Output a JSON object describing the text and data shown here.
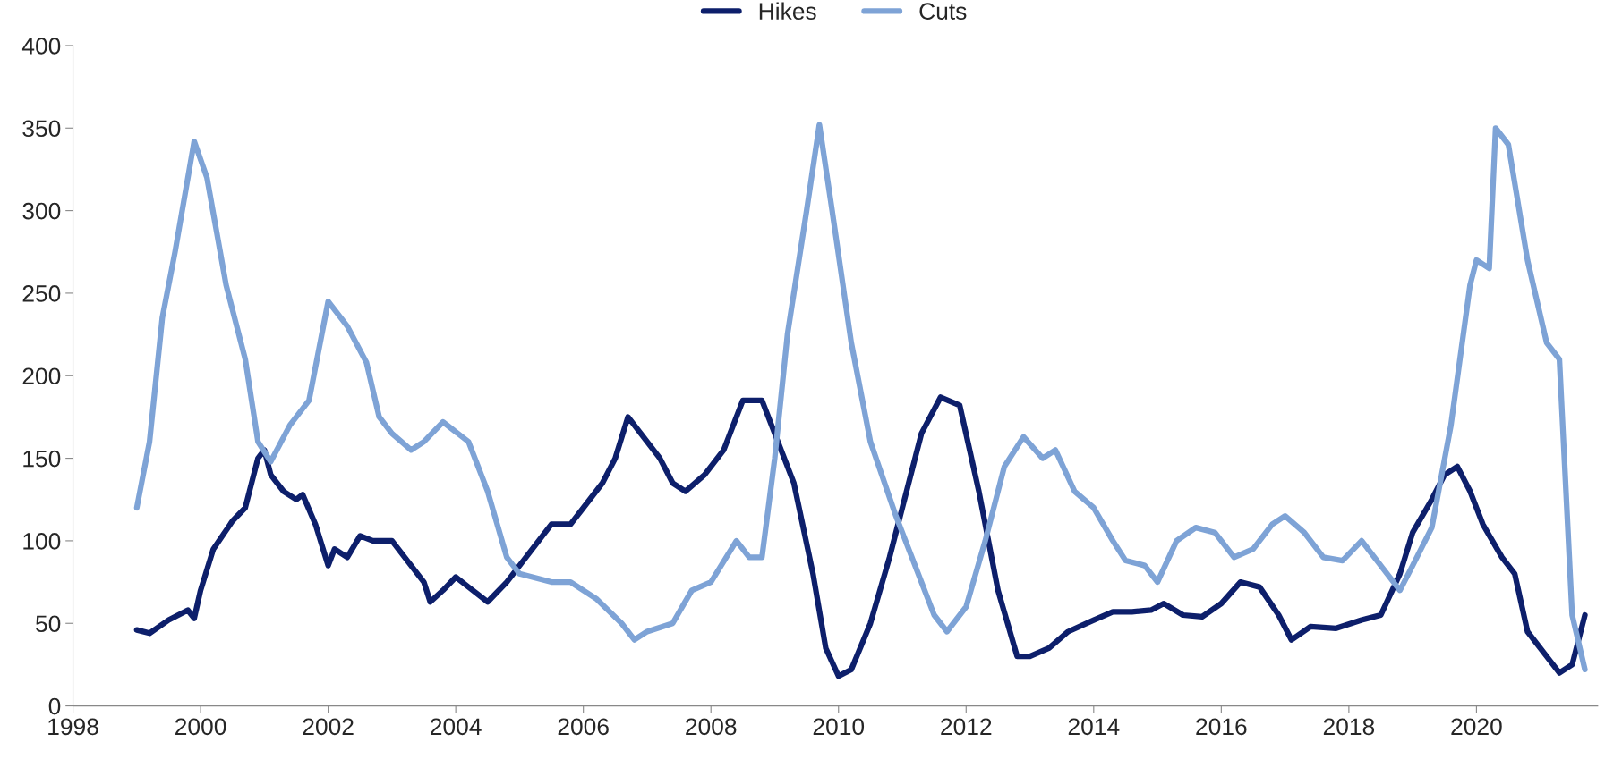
{
  "chart_data": {
    "type": "line",
    "xlim": [
      1998,
      2021.9
    ],
    "xticks": [
      1998,
      2000,
      2002,
      2004,
      2006,
      2008,
      2010,
      2012,
      2014,
      2016,
      2018,
      2020
    ],
    "ylim": [
      0,
      400
    ],
    "yticks": [
      0,
      50,
      100,
      150,
      200,
      250,
      300,
      350,
      400
    ],
    "grid": false,
    "legend": "top",
    "line_style": "solid",
    "marker": "none",
    "series": [
      {
        "name": "Hikes",
        "color": "#0d1f6b",
        "x": [
          1999.0,
          1999.2,
          1999.5,
          1999.8,
          1999.9,
          2000.0,
          2000.2,
          2000.5,
          2000.7,
          2000.9,
          2001.0,
          2001.1,
          2001.3,
          2001.5,
          2001.6,
          2001.8,
          2002.0,
          2002.1,
          2002.3,
          2002.5,
          2002.7,
          2003.0,
          2003.2,
          2003.5,
          2003.6,
          2003.8,
          2004.0,
          2004.2,
          2004.5,
          2004.8,
          2005.0,
          2005.3,
          2005.5,
          2005.8,
          2006.0,
          2006.3,
          2006.5,
          2006.7,
          2007.0,
          2007.2,
          2007.4,
          2007.6,
          2007.9,
          2008.2,
          2008.5,
          2008.8,
          2009.0,
          2009.3,
          2009.6,
          2009.8,
          2010.0,
          2010.2,
          2010.5,
          2010.8,
          2011.0,
          2011.3,
          2011.6,
          2011.9,
          2012.2,
          2012.5,
          2012.8,
          2013.0,
          2013.3,
          2013.6,
          2014.0,
          2014.3,
          2014.6,
          2014.9,
          2015.1,
          2015.4,
          2015.7,
          2016.0,
          2016.3,
          2016.6,
          2016.9,
          2017.1,
          2017.4,
          2017.8,
          2018.2,
          2018.5,
          2018.8,
          2019.0,
          2019.3,
          2019.5,
          2019.7,
          2019.9,
          2020.1,
          2020.4,
          2020.6,
          2020.8,
          2021.1,
          2021.3,
          2021.5,
          2021.7
        ],
        "values": [
          46,
          44,
          52,
          58,
          53,
          70,
          95,
          112,
          120,
          150,
          155,
          140,
          130,
          125,
          128,
          110,
          85,
          95,
          90,
          103,
          100,
          100,
          90,
          75,
          63,
          70,
          78,
          72,
          63,
          75,
          85,
          100,
          110,
          110,
          120,
          135,
          150,
          175,
          160,
          150,
          135,
          130,
          140,
          155,
          185,
          185,
          165,
          135,
          80,
          35,
          18,
          22,
          50,
          90,
          120,
          165,
          187,
          182,
          130,
          70,
          30,
          30,
          35,
          45,
          52,
          57,
          57,
          58,
          62,
          55,
          54,
          62,
          75,
          72,
          55,
          40,
          48,
          47,
          52,
          55,
          80,
          105,
          125,
          140,
          145,
          130,
          110,
          90,
          80,
          45,
          30,
          20,
          25,
          55
        ]
      },
      {
        "name": "Cuts",
        "color": "#7ea3d6",
        "x": [
          1999.0,
          1999.2,
          1999.4,
          1999.6,
          1999.9,
          2000.1,
          2000.4,
          2000.7,
          2000.9,
          2001.1,
          2001.4,
          2001.7,
          2002.0,
          2002.3,
          2002.6,
          2002.8,
          2003.0,
          2003.3,
          2003.5,
          2003.8,
          2004.2,
          2004.5,
          2004.8,
          2005.0,
          2005.5,
          2005.8,
          2006.2,
          2006.6,
          2006.8,
          2007.0,
          2007.4,
          2007.7,
          2008.0,
          2008.4,
          2008.6,
          2008.8,
          2009.0,
          2009.2,
          2009.5,
          2009.7,
          2009.9,
          2010.2,
          2010.5,
          2010.9,
          2011.2,
          2011.5,
          2011.7,
          2012.0,
          2012.3,
          2012.6,
          2012.9,
          2013.2,
          2013.4,
          2013.7,
          2014.0,
          2014.3,
          2014.5,
          2014.8,
          2015.0,
          2015.3,
          2015.6,
          2015.9,
          2016.2,
          2016.5,
          2016.8,
          2017.0,
          2017.3,
          2017.6,
          2017.9,
          2018.2,
          2018.5,
          2018.8,
          2019.0,
          2019.3,
          2019.6,
          2019.9,
          2020.0,
          2020.2,
          2020.3,
          2020.5,
          2020.8,
          2021.1,
          2021.3,
          2021.5,
          2021.7
        ],
        "values": [
          120,
          160,
          235,
          275,
          342,
          320,
          255,
          210,
          160,
          148,
          170,
          185,
          245,
          230,
          208,
          175,
          165,
          155,
          160,
          172,
          160,
          130,
          90,
          80,
          75,
          75,
          65,
          50,
          40,
          45,
          50,
          70,
          75,
          100,
          90,
          90,
          150,
          225,
          300,
          352,
          300,
          220,
          160,
          115,
          85,
          55,
          45,
          60,
          100,
          145,
          163,
          150,
          155,
          130,
          120,
          100,
          88,
          85,
          75,
          100,
          108,
          105,
          90,
          95,
          110,
          115,
          105,
          90,
          88,
          100,
          85,
          70,
          85,
          108,
          170,
          255,
          270,
          265,
          350,
          340,
          270,
          220,
          210,
          55,
          22
        ]
      }
    ]
  }
}
